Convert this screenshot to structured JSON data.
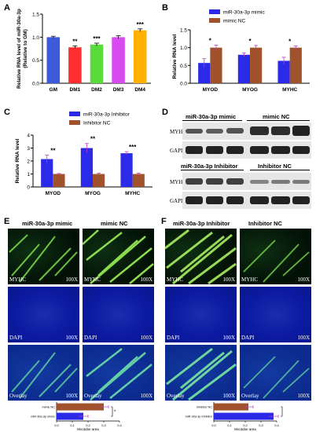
{
  "panels": {
    "A": {
      "label": "A"
    },
    "B": {
      "label": "B"
    },
    "C": {
      "label": "C"
    },
    "D": {
      "label": "D"
    },
    "E": {
      "label": "E"
    },
    "F": {
      "label": "F"
    }
  },
  "chart_data": [
    {
      "id": "A",
      "type": "bar",
      "ylabel": "Relative RNA level of miR-30a-3p (Relative to GM)",
      "ylabel_lines": [
        "Relative RNA level of miR-30a-3p",
        "(Relative to GM)"
      ],
      "categories": [
        "GM",
        "DM1",
        "DM2",
        "DM3",
        "DM4"
      ],
      "values": [
        1.0,
        0.78,
        0.84,
        1.0,
        1.15
      ],
      "errors": [
        0.02,
        0.03,
        0.03,
        0.03,
        0.03
      ],
      "significance": [
        "",
        "**",
        "***",
        "",
        "***"
      ],
      "colors": [
        "#3b5bdb",
        "#ff2f2f",
        "#5adb3b",
        "#d84bf0",
        "#ffb000"
      ],
      "ylim": [
        0,
        1.5
      ],
      "yticks": [
        "0.0",
        "0.5",
        "1.0",
        "1.5"
      ]
    },
    {
      "id": "B",
      "type": "bar",
      "ylabel": "Relative RNA level",
      "categories": [
        "MYOD",
        "MYOG",
        "MYHC"
      ],
      "series": [
        {
          "name": "miR-30a-3p mimic",
          "color": "#2a2ae8",
          "values": [
            0.57,
            0.8,
            0.63
          ],
          "errors": [
            0.12,
            0.05,
            0.1
          ]
        },
        {
          "name": "mimic NC",
          "color": "#a0522d",
          "values": [
            1.0,
            1.0,
            1.0
          ],
          "errors": [
            0.07,
            0.06,
            0.05
          ]
        }
      ],
      "significance": [
        "*",
        "*",
        "*"
      ],
      "ylim": [
        0,
        1.5
      ],
      "yticks": [
        "0.0",
        "0.5",
        "1.0",
        "1.5"
      ],
      "legend": "top-right"
    },
    {
      "id": "C",
      "type": "bar",
      "ylabel": "Relative RNA level",
      "categories": [
        "MYOD",
        "MYOG",
        "MYHC"
      ],
      "series": [
        {
          "name": "miR-30a-3p Inhibitor",
          "color": "#2a2ae8",
          "values": [
            2.15,
            3.0,
            2.6
          ],
          "errors": [
            0.3,
            0.35,
            0.12
          ]
        },
        {
          "name": "Inhibitor NC",
          "color": "#a0522d",
          "values": [
            1.0,
            1.0,
            1.0
          ],
          "errors": [
            0.04,
            0.06,
            0.06
          ]
        }
      ],
      "significance": [
        "**",
        "**",
        "***"
      ],
      "ylim": [
        0,
        4
      ],
      "yticks": [
        "0",
        "1",
        "2",
        "3",
        "4"
      ],
      "legend": "top-right"
    },
    {
      "id": "E-quant",
      "type": "bar",
      "orientation": "horizontal",
      "xlabel": "Myotube area",
      "categories": [
        "mimic NC",
        "miR-30a-3p mimic"
      ],
      "values": [
        0.3,
        0.17
      ],
      "errors": [
        0.03,
        0.03
      ],
      "colors": [
        "#a0522d",
        "#2a2ae8"
      ],
      "significance": "*",
      "xlim": [
        0,
        0.4
      ],
      "xticks": [
        "0.0",
        "0.1",
        "0.2",
        "0.3",
        "0.4"
      ]
    },
    {
      "id": "F-quant",
      "type": "bar",
      "orientation": "horizontal",
      "xlabel": "Myotube area",
      "categories": [
        "Inhibitor NC",
        "miR-30a-3p Inhibitor"
      ],
      "values": [
        0.22,
        0.38
      ],
      "errors": [
        0.03,
        0.03
      ],
      "colors": [
        "#a0522d",
        "#2a2ae8"
      ],
      "significance": "*",
      "xlim": [
        0,
        0.4
      ],
      "xticks": [
        "0.0",
        "0.1",
        "0.2",
        "0.3",
        "0.4"
      ]
    }
  ],
  "western": {
    "top_left_title": "miR-30a-3p mimic",
    "top_right_title": "mimic NC",
    "bottom_left_title": "miR-30a-3p Inhibitor",
    "bottom_right_title": "Inhibitor NC",
    "row1": "MYHC",
    "row2": "GAPDH",
    "row3": "MYHC",
    "row4": "GAPDH"
  },
  "panelE": {
    "col1": "miR-30a-3p mimic",
    "col2": "mimic NC",
    "rows": [
      "MYHC",
      "DAPI",
      "Overlay"
    ],
    "mag": "100X"
  },
  "panelF": {
    "col1": "miR-30a-3p Inhibitor",
    "col2": "Inhibitor NC",
    "rows": [
      "MYHC",
      "DAPI",
      "Overlay"
    ],
    "mag": "100X"
  }
}
